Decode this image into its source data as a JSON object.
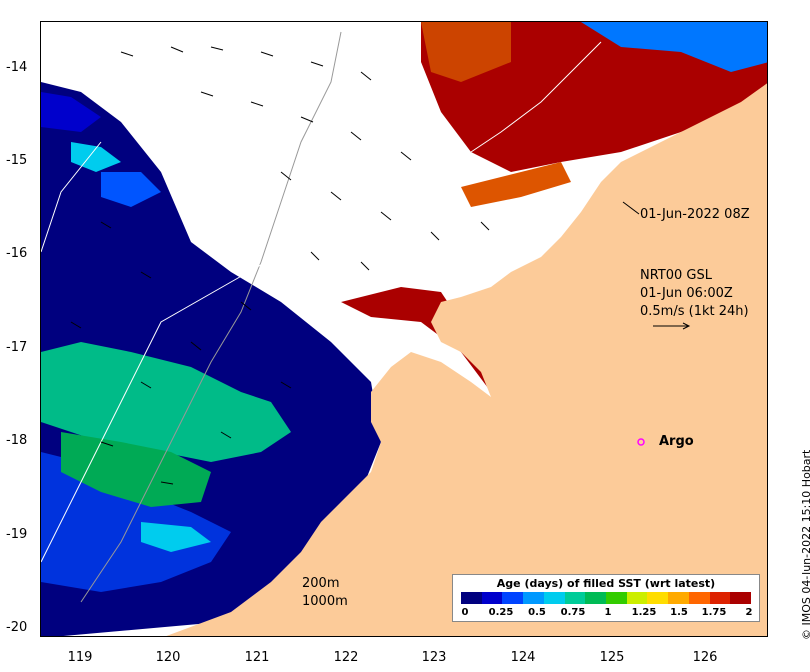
{
  "map": {
    "y_ticks": [
      "-14",
      "-15",
      "-16",
      "-17",
      "-18",
      "-19",
      "-20"
    ],
    "x_ticks": [
      "119",
      "120",
      "121",
      "122",
      "123",
      "124",
      "125",
      "126"
    ],
    "timestamp_label": "01-Jun-2022 08Z",
    "current_info": {
      "line1": "NRT00 GSL",
      "line2": "01-Jun 06:00Z",
      "line3": "0.5m/s (1kt 24h)"
    },
    "argo": {
      "label": "Argo",
      "color": "#ff00ff"
    },
    "depth_contours": {
      "c200": "200m",
      "c1000": "1000m"
    },
    "land_color": "#fccb99"
  },
  "colorbar": {
    "title": "Age (days) of filled SST (wrt latest)",
    "ticks": [
      "0",
      "0.25",
      "0.5",
      "0.75",
      "1",
      "1.25",
      "1.5",
      "1.75",
      "2"
    ],
    "colors": [
      "#00007f",
      "#0000cc",
      "#0044ff",
      "#0099ff",
      "#00ccee",
      "#00cc99",
      "#00bb55",
      "#33cc00",
      "#ccee00",
      "#ffdd00",
      "#ffaa00",
      "#ff6600",
      "#dd2200",
      "#aa0000"
    ]
  },
  "credit": "© IMOS 04-Jun-2022 15:10 Hobart"
}
